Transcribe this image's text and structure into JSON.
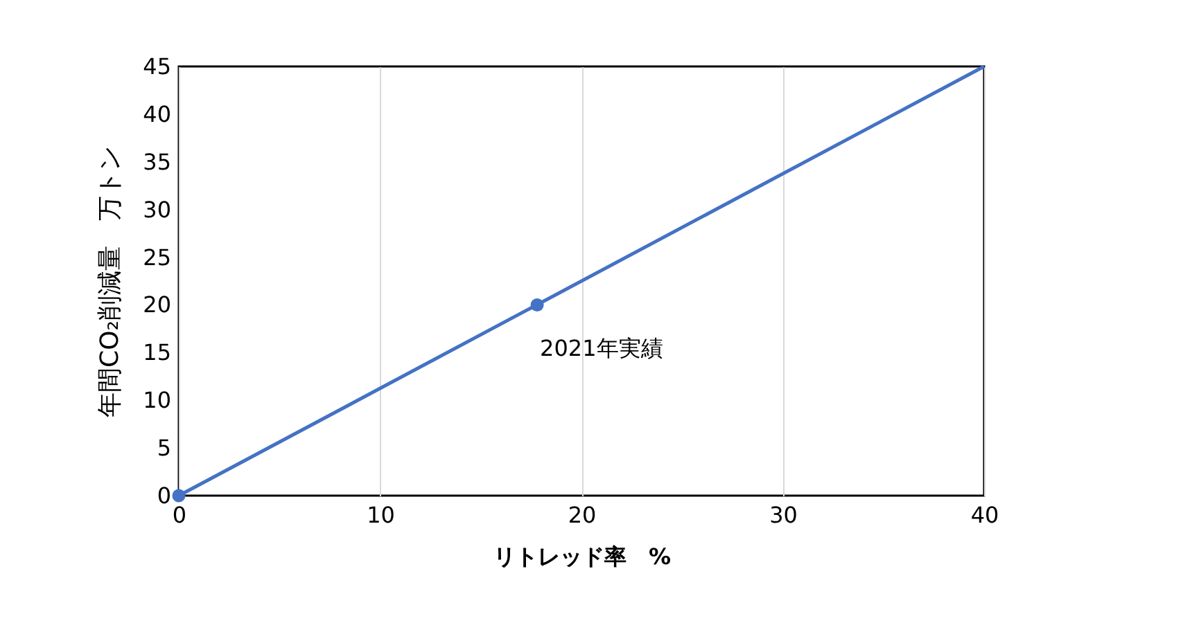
{
  "chart_data": {
    "type": "line",
    "xlabel": "リトレッド率　%",
    "ylabel": "年間CO₂削減量　万トン",
    "series": [
      {
        "color": "#4472c4",
        "x": [
          0,
          40
        ],
        "values": [
          0,
          45
        ],
        "marker": "none"
      },
      {
        "type": "scatter",
        "color": "#4472c4",
        "x": [
          0,
          17.8
        ],
        "values": [
          0,
          20
        ],
        "marker": "circle"
      }
    ],
    "annotations": [
      {
        "text": "2021年実績",
        "x": 17.8,
        "y": 20
      }
    ],
    "xlim": [
      0,
      40
    ],
    "xticks": [
      0,
      10,
      20,
      30,
      40
    ],
    "ylim": [
      0,
      45
    ],
    "yticks": [
      0,
      5,
      10,
      15,
      20,
      25,
      30,
      35,
      40,
      45
    ],
    "grid": "x"
  }
}
